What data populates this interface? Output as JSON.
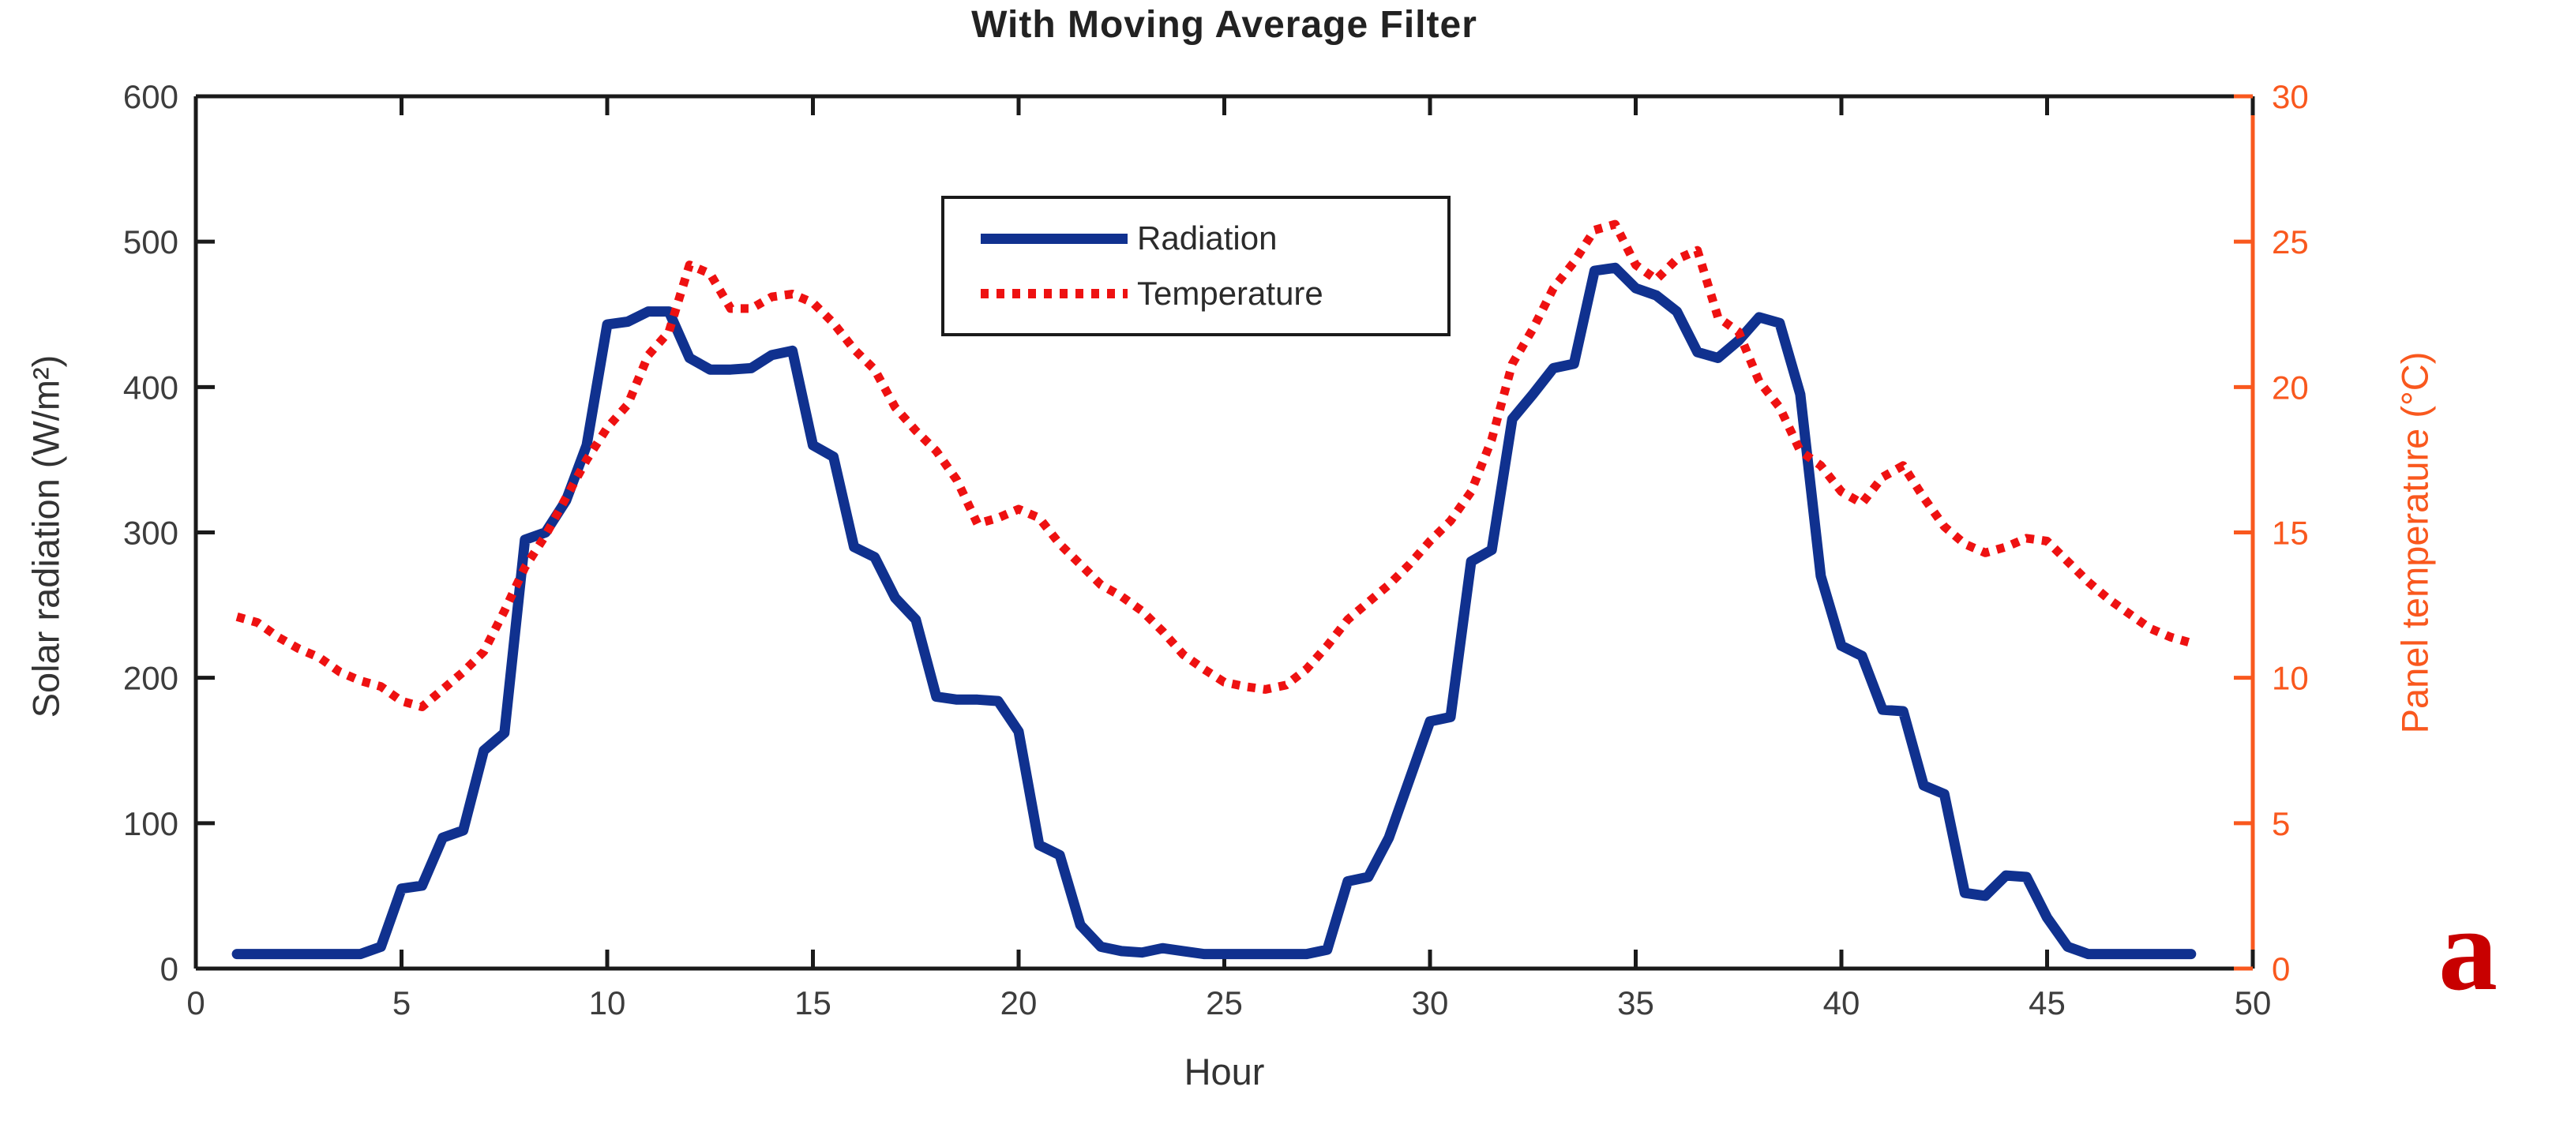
{
  "figure": {
    "title": "With Moving Average Filter",
    "xlabel": "Hour",
    "ylabel_left": "Solar radiation (W/m²)",
    "ylabel_right": "Panel temperature (°C)",
    "corner_label": "a",
    "colors": {
      "radiation_line": "#10318F",
      "temperature_line": "#EE1111",
      "right_axis": "#F9581E",
      "left_axis": "#1a1a1a",
      "tick_text": "#3d3d3d",
      "corner_letter": "#C80000"
    },
    "legend": {
      "items": [
        {
          "label": "Radiation",
          "style": "solid",
          "color": "#10318F"
        },
        {
          "label": "Temperature",
          "style": "dotted",
          "color": "#EE1111"
        }
      ]
    }
  },
  "chart_data": {
    "type": "line",
    "title": "With Moving Average Filter",
    "xlabel": "Hour",
    "ylabel_left": "Solar radiation (W/m²)",
    "ylabel_right": "Panel temperature (°C)",
    "xlim": [
      0,
      50
    ],
    "ylim_left": [
      0,
      600
    ],
    "ylim_right": [
      0,
      30
    ],
    "x_ticks": [
      0,
      5,
      10,
      15,
      20,
      25,
      30,
      35,
      40,
      45,
      50
    ],
    "y_ticks_left": [
      0,
      100,
      200,
      300,
      400,
      500,
      600
    ],
    "y_ticks_right": [
      0,
      5,
      10,
      15,
      20,
      25,
      30
    ],
    "grid": false,
    "legend_position": "upper center-left",
    "x": [
      1,
      1.5,
      2,
      2.5,
      3,
      3.5,
      4,
      4.5,
      5,
      5.5,
      6,
      6.5,
      7,
      7.5,
      8,
      8.5,
      9,
      9.5,
      10,
      10.5,
      11,
      11.5,
      12,
      12.5,
      13,
      13.5,
      14,
      14.5,
      15,
      15.5,
      16,
      16.5,
      17,
      17.5,
      18,
      18.5,
      19,
      19.5,
      20,
      20.5,
      21,
      21.5,
      22,
      22.5,
      23,
      23.5,
      24,
      24.5,
      25,
      25.5,
      26,
      26.5,
      27,
      27.5,
      28,
      28.5,
      29,
      29.5,
      30,
      30.5,
      31,
      31.5,
      32,
      32.5,
      33,
      33.5,
      34,
      34.5,
      35,
      35.5,
      36,
      36.5,
      37,
      37.5,
      38,
      38.5,
      39,
      39.5,
      40,
      40.5,
      41,
      41.5,
      42,
      42.5,
      43,
      43.5,
      44,
      44.5,
      45,
      45.5,
      46,
      46.5,
      47,
      47.5,
      48,
      48.5
    ],
    "series": [
      {
        "name": "Radiation",
        "axis": "left",
        "units": "W/m²",
        "style": "solid",
        "color": "#10318F",
        "values": [
          10,
          10,
          10,
          10,
          10,
          10,
          10,
          15,
          55,
          57,
          90,
          95,
          150,
          162,
          295,
          300,
          322,
          360,
          443,
          445,
          452,
          452,
          420,
          412,
          412,
          413,
          422,
          425,
          360,
          352,
          290,
          283,
          255,
          240,
          187,
          185,
          185,
          184,
          163,
          85,
          78,
          30,
          15,
          12,
          11,
          14,
          12,
          10,
          10,
          10,
          10,
          10,
          10,
          13,
          60,
          63,
          90,
          130,
          170,
          173,
          280,
          288,
          378,
          395,
          413,
          416,
          480,
          482,
          468,
          463,
          452,
          424,
          420,
          432,
          448,
          444,
          395,
          270,
          222,
          215,
          178,
          177,
          126,
          120,
          52,
          50,
          64,
          63,
          35,
          15,
          10,
          10,
          10,
          10,
          10,
          10
        ]
      },
      {
        "name": "Temperature",
        "axis": "right",
        "units": "°C",
        "style": "dotted",
        "color": "#EE1111",
        "values": [
          12.1,
          11.9,
          11.4,
          11.0,
          10.7,
          10.2,
          9.9,
          9.7,
          9.2,
          9.0,
          9.6,
          10.2,
          10.9,
          12.3,
          13.8,
          14.9,
          16.2,
          17.5,
          18.6,
          19.4,
          21.1,
          21.9,
          24.2,
          23.9,
          22.7,
          22.7,
          23.1,
          23.2,
          22.9,
          22.2,
          21.3,
          20.6,
          19.3,
          18.5,
          17.8,
          16.8,
          15.3,
          15.5,
          15.8,
          15.5,
          14.6,
          13.9,
          13.2,
          12.8,
          12.3,
          11.6,
          10.8,
          10.3,
          9.85,
          9.7,
          9.6,
          9.75,
          10.3,
          11.1,
          12.0,
          12.6,
          13.2,
          13.9,
          14.7,
          15.4,
          16.4,
          18.2,
          20.8,
          22.0,
          23.4,
          24.3,
          25.4,
          25.6,
          24.2,
          23.7,
          24.4,
          24.7,
          22.4,
          21.9,
          20.2,
          19.3,
          17.8,
          17.3,
          16.4,
          16.0,
          16.9,
          17.3,
          16.2,
          15.2,
          14.6,
          14.3,
          14.5,
          14.8,
          14.7,
          14.0,
          13.3,
          12.7,
          12.2,
          11.7,
          11.4,
          11.2
        ]
      }
    ]
  }
}
